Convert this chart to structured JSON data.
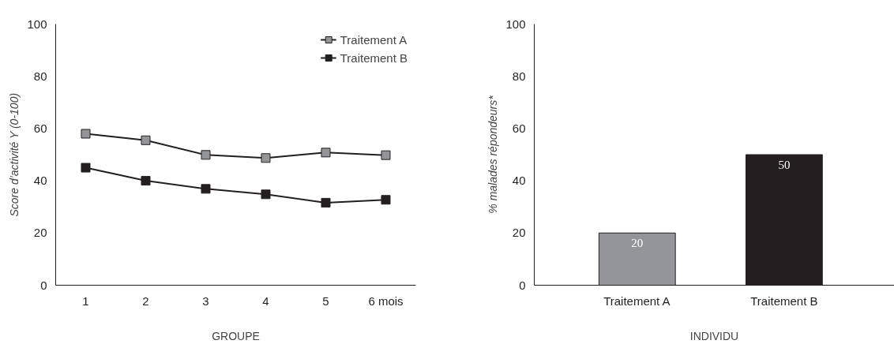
{
  "chart_data": [
    {
      "type": "line",
      "xlabel": "GROUPE",
      "ylabel": "Score d’activité Y (0-100)",
      "x": [
        1,
        2,
        3,
        4,
        5,
        6
      ],
      "series": [
        {
          "name": "Traitement A",
          "color": "#939598",
          "values": [
            58,
            55.5,
            49.9,
            48.7,
            50.8,
            49.8
          ]
        },
        {
          "name": "Traitement B",
          "color": "#231f20",
          "values": [
            45,
            40,
            36.9,
            34.8,
            31.6,
            32.7
          ]
        }
      ],
      "xlim": [
        0.5,
        6.5
      ],
      "xticks": [
        1,
        2,
        3,
        4,
        5,
        {
          "value": 6,
          "label": "6 mois"
        }
      ],
      "ylim": [
        0,
        100
      ],
      "yticks": [
        0,
        20,
        40,
        60,
        80,
        100
      ],
      "grid": false,
      "legend": "top right",
      "marker": "square",
      "line_style": "solid"
    },
    {
      "type": "bar",
      "xlabel": "INDIVIDU",
      "ylabel": "% malades répondeurs*",
      "categories": [
        "Traitement A",
        "Traitement B"
      ],
      "values": [
        20,
        50
      ],
      "colors": [
        "#939598",
        "#231f20"
      ],
      "ylim": [
        0,
        100
      ],
      "yticks": [
        0,
        20,
        40,
        60,
        80,
        100
      ],
      "grid": false,
      "data_labels": true
    }
  ]
}
